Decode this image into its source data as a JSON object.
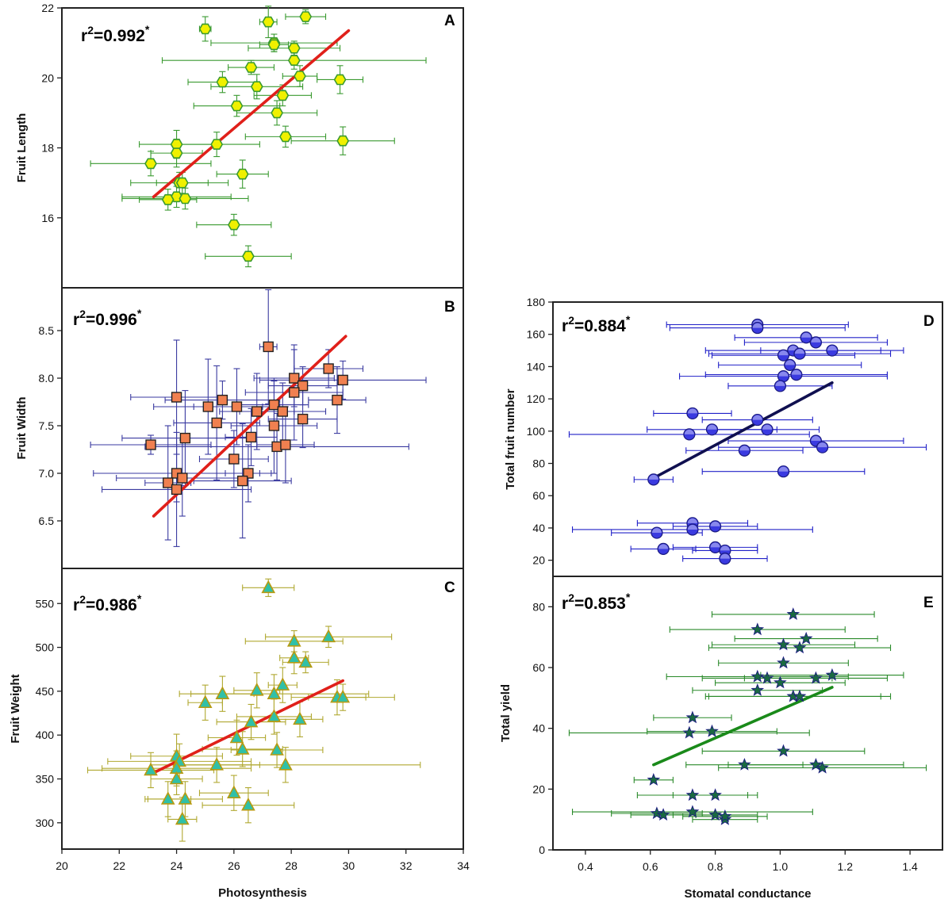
{
  "chart_data": [
    {
      "panel": "A",
      "type": "scatter",
      "ylabel": "Fruit Length",
      "xlabel": "",
      "r2_label": "r",
      "r2_exp": "2",
      "r2_value": "=0.992",
      "r2_star": "*",
      "xlim": [
        20,
        34
      ],
      "ylim": [
        14,
        22
      ],
      "yticks": [
        16,
        18,
        20,
        22
      ],
      "xticks": [],
      "marker": "hexagon",
      "marker_color": "#f0f000",
      "marker_edge": "#3a9a30",
      "errorbar_color": "#3a9a30",
      "fit_color": "#e0201a",
      "fit": {
        "x": [
          23.2,
          30.0
        ],
        "y": [
          16.6,
          21.35
        ]
      },
      "points": [
        {
          "x": 25.0,
          "y": 21.4,
          "xe": 0.2,
          "ye": 0.35
        },
        {
          "x": 27.2,
          "y": 21.6,
          "xe": 0.3,
          "ye": 0.45
        },
        {
          "x": 28.5,
          "y": 21.75,
          "xe": 0.7,
          "ye": 0.2
        },
        {
          "x": 27.4,
          "y": 21.0,
          "xe": 2.2,
          "ye": 0.25
        },
        {
          "x": 28.1,
          "y": 20.85,
          "xe": 1.6,
          "ye": 0.2
        },
        {
          "x": 27.4,
          "y": 20.95,
          "xe": 0.5,
          "ye": 0.2
        },
        {
          "x": 28.1,
          "y": 20.5,
          "xe": 4.6,
          "ye": 0.25
        },
        {
          "x": 26.6,
          "y": 20.3,
          "xe": 0.8,
          "ye": 0.2
        },
        {
          "x": 28.3,
          "y": 20.05,
          "xe": 0.6,
          "ye": 0.3
        },
        {
          "x": 29.7,
          "y": 19.95,
          "xe": 0.8,
          "ye": 0.4
        },
        {
          "x": 25.6,
          "y": 19.88,
          "xe": 1.2,
          "ye": 0.3
        },
        {
          "x": 26.8,
          "y": 19.75,
          "xe": 1.6,
          "ye": 0.35
        },
        {
          "x": 27.7,
          "y": 19.5,
          "xe": 1.0,
          "ye": 0.3
        },
        {
          "x": 26.1,
          "y": 19.2,
          "xe": 1.5,
          "ye": 0.3
        },
        {
          "x": 27.5,
          "y": 19.0,
          "xe": 1.4,
          "ye": 0.35
        },
        {
          "x": 27.8,
          "y": 18.32,
          "xe": 1.4,
          "ye": 0.3
        },
        {
          "x": 29.8,
          "y": 18.2,
          "xe": 1.8,
          "ye": 0.4
        },
        {
          "x": 24.0,
          "y": 18.1,
          "xe": 1.3,
          "ye": 0.4
        },
        {
          "x": 25.4,
          "y": 18.1,
          "xe": 1.5,
          "ye": 0.35
        },
        {
          "x": 24.0,
          "y": 17.85,
          "xe": 0.9,
          "ye": 0.4
        },
        {
          "x": 23.1,
          "y": 17.55,
          "xe": 2.1,
          "ye": 0.35
        },
        {
          "x": 26.3,
          "y": 17.25,
          "xe": 0.9,
          "ye": 0.4
        },
        {
          "x": 24.1,
          "y": 17.0,
          "xe": 1.7,
          "ye": 0.3
        },
        {
          "x": 24.2,
          "y": 17.0,
          "xe": 0.9,
          "ye": 0.3
        },
        {
          "x": 24.0,
          "y": 16.6,
          "xe": 1.9,
          "ye": 0.3
        },
        {
          "x": 23.7,
          "y": 16.52,
          "xe": 1.0,
          "ye": 0.3
        },
        {
          "x": 24.3,
          "y": 16.55,
          "xe": 2.2,
          "ye": 0.3
        },
        {
          "x": 26.0,
          "y": 15.8,
          "xe": 1.3,
          "ye": 0.3
        },
        {
          "x": 26.5,
          "y": 14.9,
          "xe": 1.5,
          "ye": 0.3
        }
      ]
    },
    {
      "panel": "B",
      "type": "scatter",
      "ylabel": "Fruit Width",
      "xlabel": "",
      "r2_label": "r",
      "r2_exp": "2",
      "r2_value": "=0.996",
      "r2_star": "*",
      "xlim": [
        20,
        34
      ],
      "ylim": [
        6.0,
        8.95
      ],
      "yticks": [
        6.5,
        7.0,
        7.5,
        8.0,
        8.5
      ],
      "ytick_labels": [
        "6.5",
        "7.0",
        "7.5",
        "8.0",
        "8.5"
      ],
      "xticks": [],
      "marker": "square",
      "marker_color": "#f08050",
      "marker_edge": "#222222",
      "errorbar_color": "#3a3aa0",
      "fit_color": "#e0201a",
      "fit": {
        "x": [
          23.2,
          29.9
        ],
        "y": [
          6.55,
          8.44
        ]
      },
      "points": [
        {
          "x": 27.2,
          "y": 8.33,
          "xe": 0.3,
          "ye": 0.6
        },
        {
          "x": 29.3,
          "y": 8.1,
          "xe": 1.2,
          "ye": 0.2
        },
        {
          "x": 28.1,
          "y": 8.0,
          "xe": 1.4,
          "ye": 0.3
        },
        {
          "x": 29.8,
          "y": 7.98,
          "xe": 2.9,
          "ye": 0.2
        },
        {
          "x": 28.4,
          "y": 7.92,
          "xe": 1.2,
          "ye": 0.2
        },
        {
          "x": 28.1,
          "y": 7.85,
          "xe": 1.7,
          "ye": 0.5
        },
        {
          "x": 24.0,
          "y": 7.8,
          "xe": 1.6,
          "ye": 0.6
        },
        {
          "x": 25.6,
          "y": 7.77,
          "xe": 2.0,
          "ye": 0.2
        },
        {
          "x": 29.6,
          "y": 7.77,
          "xe": 1.0,
          "ye": 0.35
        },
        {
          "x": 27.4,
          "y": 7.72,
          "xe": 1.2,
          "ye": 0.25
        },
        {
          "x": 25.1,
          "y": 7.7,
          "xe": 1.9,
          "ye": 0.5
        },
        {
          "x": 26.1,
          "y": 7.7,
          "xe": 1.5,
          "ye": 0.4
        },
        {
          "x": 27.7,
          "y": 7.65,
          "xe": 1.5,
          "ye": 0.3
        },
        {
          "x": 26.8,
          "y": 7.65,
          "xe": 1.3,
          "ye": 0.4
        },
        {
          "x": 28.4,
          "y": 7.57,
          "xe": 1.2,
          "ye": 0.3
        },
        {
          "x": 25.4,
          "y": 7.53,
          "xe": 1.5,
          "ye": 0.6
        },
        {
          "x": 27.4,
          "y": 7.5,
          "xe": 1.5,
          "ye": 0.5
        },
        {
          "x": 26.6,
          "y": 7.38,
          "xe": 0.9,
          "ye": 0.3
        },
        {
          "x": 24.3,
          "y": 7.37,
          "xe": 2.2,
          "ye": 0.5
        },
        {
          "x": 23.1,
          "y": 7.3,
          "xe": 2.1,
          "ye": 0.1
        },
        {
          "x": 27.5,
          "y": 7.28,
          "xe": 4.6,
          "ye": 0.35
        },
        {
          "x": 27.8,
          "y": 7.3,
          "xe": 1.0,
          "ye": 0.4
        },
        {
          "x": 26.0,
          "y": 7.15,
          "xe": 1.2,
          "ye": 0.3
        },
        {
          "x": 26.5,
          "y": 7.0,
          "xe": 0.8,
          "ye": 0.3
        },
        {
          "x": 24.0,
          "y": 7.0,
          "xe": 2.9,
          "ye": 0.3
        },
        {
          "x": 24.2,
          "y": 6.95,
          "xe": 2.3,
          "ye": 0.4
        },
        {
          "x": 23.7,
          "y": 6.9,
          "xe": 0.8,
          "ye": 0.6
        },
        {
          "x": 26.3,
          "y": 6.92,
          "xe": 1.7,
          "ye": 0.6
        },
        {
          "x": 24.0,
          "y": 6.83,
          "xe": 2.6,
          "ye": 0.6
        }
      ]
    },
    {
      "panel": "C",
      "type": "scatter",
      "ylabel": "Fruit Weight",
      "xlabel": "Photosynthesis",
      "r2_label": "r",
      "r2_exp": "2",
      "r2_value": "=0.986",
      "r2_star": "*",
      "xlim": [
        20,
        34
      ],
      "ylim": [
        270,
        590
      ],
      "yticks": [
        300,
        350,
        400,
        450,
        500,
        550
      ],
      "xticks": [
        20,
        22,
        24,
        26,
        28,
        30,
        32,
        34
      ],
      "marker": "triangle",
      "marker_color": "#30c0a8",
      "marker_edge": "#b89a10",
      "errorbar_color": "#b0a830",
      "fit_color": "#e0201a",
      "fit": {
        "x": [
          23.2,
          29.8
        ],
        "y": [
          357,
          462
        ]
      },
      "points": [
        {
          "x": 27.2,
          "y": 568,
          "xe": 0.9,
          "ye": 10
        },
        {
          "x": 29.3,
          "y": 512,
          "xe": 2.2,
          "ye": 12
        },
        {
          "x": 28.1,
          "y": 507,
          "xe": 1.7,
          "ye": 12
        },
        {
          "x": 28.1,
          "y": 488,
          "xe": 0.5,
          "ye": 18
        },
        {
          "x": 28.5,
          "y": 483,
          "xe": 0.8,
          "ye": 12
        },
        {
          "x": 27.7,
          "y": 457,
          "xe": 0.5,
          "ye": 20
        },
        {
          "x": 26.8,
          "y": 451,
          "xe": 0.8,
          "ye": 20
        },
        {
          "x": 25.6,
          "y": 447,
          "xe": 1.1,
          "ye": 20
        },
        {
          "x": 27.4,
          "y": 447,
          "xe": 3.3,
          "ye": 22
        },
        {
          "x": 29.6,
          "y": 443,
          "xe": 1.0,
          "ye": 20
        },
        {
          "x": 29.8,
          "y": 443,
          "xe": 1.8,
          "ye": 15
        },
        {
          "x": 25.0,
          "y": 437,
          "xe": 0.6,
          "ye": 20
        },
        {
          "x": 27.4,
          "y": 421,
          "xe": 1.3,
          "ye": 20
        },
        {
          "x": 28.3,
          "y": 418,
          "xe": 0.8,
          "ye": 20
        },
        {
          "x": 26.6,
          "y": 415,
          "xe": 1.2,
          "ye": 20
        },
        {
          "x": 26.1,
          "y": 397,
          "xe": 1.0,
          "ye": 20
        },
        {
          "x": 26.3,
          "y": 384,
          "xe": 1.4,
          "ye": 20
        },
        {
          "x": 27.5,
          "y": 383,
          "xe": 1.6,
          "ye": 20
        },
        {
          "x": 24.0,
          "y": 376,
          "xe": 1.6,
          "ye": 25
        },
        {
          "x": 24.1,
          "y": 370,
          "xe": 2.5,
          "ye": 20
        },
        {
          "x": 27.8,
          "y": 366,
          "xe": 4.7,
          "ye": 20
        },
        {
          "x": 25.4,
          "y": 366,
          "xe": 1.5,
          "ye": 20
        },
        {
          "x": 24.0,
          "y": 362,
          "xe": 2.6,
          "ye": 20
        },
        {
          "x": 23.1,
          "y": 360,
          "xe": 2.2,
          "ye": 20
        },
        {
          "x": 24.0,
          "y": 350,
          "xe": 0.9,
          "ye": 18
        },
        {
          "x": 26.0,
          "y": 334,
          "xe": 1.2,
          "ye": 20
        },
        {
          "x": 23.7,
          "y": 327,
          "xe": 0.8,
          "ye": 20
        },
        {
          "x": 24.3,
          "y": 327,
          "xe": 1.3,
          "ye": 20
        },
        {
          "x": 26.5,
          "y": 320,
          "xe": 1.6,
          "ye": 20
        },
        {
          "x": 24.2,
          "y": 304,
          "xe": 0.5,
          "ye": 25
        }
      ]
    },
    {
      "panel": "D",
      "type": "scatter",
      "ylabel": "Total fruit number",
      "xlabel": "",
      "r2_label": "r",
      "r2_exp": "2",
      "r2_value": "=0.884",
      "r2_star": "*",
      "xlim": [
        0.3,
        1.5
      ],
      "ylim": [
        10,
        180
      ],
      "yticks": [
        20,
        40,
        60,
        80,
        100,
        120,
        140,
        160,
        180
      ],
      "xticks": [],
      "marker": "circle",
      "marker_color": "#3a3ae0",
      "marker_edge": "#1a1a80",
      "errorbar_color": "#2020c8",
      "fit_color": "#101050",
      "fit": {
        "x": [
          0.62,
          1.16
        ],
        "y": [
          72,
          130
        ]
      },
      "points": [
        {
          "x": 0.93,
          "y": 166,
          "xe": 0.28,
          "ye": 0
        },
        {
          "x": 0.93,
          "y": 164,
          "xe": 0.27,
          "ye": 0
        },
        {
          "x": 1.08,
          "y": 158,
          "xe": 0.22,
          "ye": 0
        },
        {
          "x": 1.11,
          "y": 155,
          "xe": 0.22,
          "ye": 0
        },
        {
          "x": 1.04,
          "y": 150,
          "xe": 0.27,
          "ye": 0
        },
        {
          "x": 1.16,
          "y": 150,
          "xe": 0.22,
          "ye": 0
        },
        {
          "x": 1.06,
          "y": 148,
          "xe": 0.28,
          "ye": 0
        },
        {
          "x": 1.01,
          "y": 147,
          "xe": 0.22,
          "ye": 0
        },
        {
          "x": 1.03,
          "y": 141,
          "xe": 0.22,
          "ye": 0
        },
        {
          "x": 1.01,
          "y": 134,
          "xe": 0.32,
          "ye": 0
        },
        {
          "x": 1.05,
          "y": 135,
          "xe": 0.28,
          "ye": 0
        },
        {
          "x": 1.0,
          "y": 128,
          "xe": 0.16,
          "ye": 0
        },
        {
          "x": 0.73,
          "y": 111,
          "xe": 0.12,
          "ye": 0
        },
        {
          "x": 0.93,
          "y": 107,
          "xe": 0.17,
          "ye": 0
        },
        {
          "x": 0.79,
          "y": 101,
          "xe": 0.2,
          "ye": 0
        },
        {
          "x": 0.96,
          "y": 101,
          "xe": 0.16,
          "ye": 0
        },
        {
          "x": 0.72,
          "y": 98,
          "xe": 0.37,
          "ye": 0
        },
        {
          "x": 1.11,
          "y": 94,
          "xe": 0.27,
          "ye": 0
        },
        {
          "x": 1.13,
          "y": 90,
          "xe": 0.32,
          "ye": 0
        },
        {
          "x": 0.89,
          "y": 88,
          "xe": 0.18,
          "ye": 0
        },
        {
          "x": 1.01,
          "y": 75,
          "xe": 0.25,
          "ye": 0
        },
        {
          "x": 0.61,
          "y": 70,
          "xe": 0.06,
          "ye": 0
        },
        {
          "x": 0.73,
          "y": 43,
          "xe": 0.17,
          "ye": 0
        },
        {
          "x": 0.8,
          "y": 41,
          "xe": 0.13,
          "ye": 0
        },
        {
          "x": 0.73,
          "y": 39,
          "xe": 0.37,
          "ye": 0
        },
        {
          "x": 0.62,
          "y": 37,
          "xe": 0.14,
          "ye": 0
        },
        {
          "x": 0.64,
          "y": 27,
          "xe": 0.1,
          "ye": 0
        },
        {
          "x": 0.8,
          "y": 28,
          "xe": 0.13,
          "ye": 0
        },
        {
          "x": 0.83,
          "y": 26,
          "xe": 0.1,
          "ye": 0
        },
        {
          "x": 0.83,
          "y": 21,
          "xe": 0.13,
          "ye": 0
        }
      ]
    },
    {
      "panel": "E",
      "type": "scatter",
      "ylabel": "Total yield",
      "xlabel": "Stomatal conductance",
      "r2_label": "r",
      "r2_exp": "2",
      "r2_value": "=0.853",
      "r2_star": "*",
      "xlim": [
        0.3,
        1.5
      ],
      "ylim": [
        0,
        90
      ],
      "yticks": [
        0,
        20,
        40,
        60,
        80
      ],
      "xticks": [
        0.4,
        0.6,
        0.8,
        1.0,
        1.2,
        1.4
      ],
      "xtick_labels": [
        "0.4",
        "0.6",
        "0.8",
        "1.0",
        "1.2",
        "1.4"
      ],
      "marker": "star",
      "marker_color": "#1a6a40",
      "marker_edge": "#1a1a80",
      "errorbar_color": "#2a8a2a",
      "fit_color": "#1a8a1a",
      "fit": {
        "x": [
          0.61,
          1.16
        ],
        "y": [
          28,
          53.5
        ]
      },
      "points": [
        {
          "x": 1.04,
          "y": 77.5,
          "xe": 0.25,
          "ye": 0
        },
        {
          "x": 0.93,
          "y": 72.5,
          "xe": 0.27,
          "ye": 0
        },
        {
          "x": 1.08,
          "y": 69.5,
          "xe": 0.22,
          "ye": 0
        },
        {
          "x": 1.01,
          "y": 67.5,
          "xe": 0.22,
          "ye": 0
        },
        {
          "x": 1.06,
          "y": 66.5,
          "xe": 0.28,
          "ye": 0
        },
        {
          "x": 1.01,
          "y": 61.5,
          "xe": 0.2,
          "ye": 0
        },
        {
          "x": 0.93,
          "y": 57,
          "xe": 0.28,
          "ye": 0
        },
        {
          "x": 0.96,
          "y": 56.5,
          "xe": 0.2,
          "ye": 0
        },
        {
          "x": 1.11,
          "y": 56.5,
          "xe": 0.22,
          "ye": 0
        },
        {
          "x": 1.16,
          "y": 57.5,
          "xe": 0.22,
          "ye": 0
        },
        {
          "x": 1.0,
          "y": 55,
          "xe": 0.2,
          "ye": 0
        },
        {
          "x": 0.93,
          "y": 52.5,
          "xe": 0.2,
          "ye": 0
        },
        {
          "x": 1.04,
          "y": 50.5,
          "xe": 0.27,
          "ye": 0
        },
        {
          "x": 1.06,
          "y": 50.5,
          "xe": 0.28,
          "ye": 0
        },
        {
          "x": 0.73,
          "y": 43.5,
          "xe": 0.12,
          "ye": 0
        },
        {
          "x": 0.72,
          "y": 38.5,
          "xe": 0.37,
          "ye": 0
        },
        {
          "x": 0.79,
          "y": 39,
          "xe": 0.2,
          "ye": 0
        },
        {
          "x": 1.01,
          "y": 32.5,
          "xe": 0.25,
          "ye": 0
        },
        {
          "x": 0.89,
          "y": 28,
          "xe": 0.18,
          "ye": 0
        },
        {
          "x": 1.11,
          "y": 28,
          "xe": 0.27,
          "ye": 0
        },
        {
          "x": 1.13,
          "y": 27,
          "xe": 0.32,
          "ye": 0
        },
        {
          "x": 0.61,
          "y": 23,
          "xe": 0.06,
          "ye": 0
        },
        {
          "x": 0.73,
          "y": 18,
          "xe": 0.17,
          "ye": 0
        },
        {
          "x": 0.8,
          "y": 18,
          "xe": 0.13,
          "ye": 0
        },
        {
          "x": 0.73,
          "y": 12.5,
          "xe": 0.37,
          "ye": 0
        },
        {
          "x": 0.62,
          "y": 12,
          "xe": 0.14,
          "ye": 0
        },
        {
          "x": 0.64,
          "y": 11.5,
          "xe": 0.1,
          "ye": 0
        },
        {
          "x": 0.8,
          "y": 11.5,
          "xe": 0.13,
          "ye": 0
        },
        {
          "x": 0.83,
          "y": 10,
          "xe": 0.1,
          "ye": 0
        },
        {
          "x": 0.83,
          "y": 11,
          "xe": 0.13,
          "ye": 0
        }
      ]
    }
  ]
}
